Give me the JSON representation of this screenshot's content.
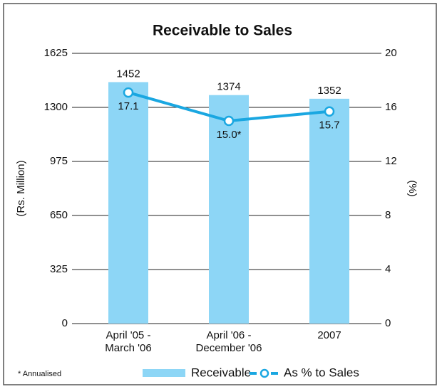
{
  "chart_data": {
    "type": "combo",
    "title": "Receivable to Sales",
    "categories": [
      "April '05 -\nMarch '06",
      "April '06 -\nDecember '06",
      "2007"
    ],
    "series": [
      {
        "name": "Receivable",
        "type": "bar",
        "color": "#8dd6f6",
        "values": [
          1452,
          1374,
          1352
        ]
      },
      {
        "name": "As % to Sales",
        "type": "line",
        "axis": "y2",
        "color": "#1aa7e1",
        "values": [
          17.1,
          15.0,
          15.7
        ],
        "value_labels": [
          "17.1",
          "15.0*",
          "15.7"
        ]
      }
    ],
    "ylabel": "(Rs. Million)",
    "y2label": "(%)",
    "ylim": [
      0,
      1625
    ],
    "yticks": [
      0,
      325,
      650,
      975,
      1300,
      1625
    ],
    "y2lim": [
      0,
      20
    ],
    "y2ticks": [
      0,
      4,
      8,
      12,
      16,
      20
    ],
    "grid": true,
    "note": "* Annualised"
  }
}
